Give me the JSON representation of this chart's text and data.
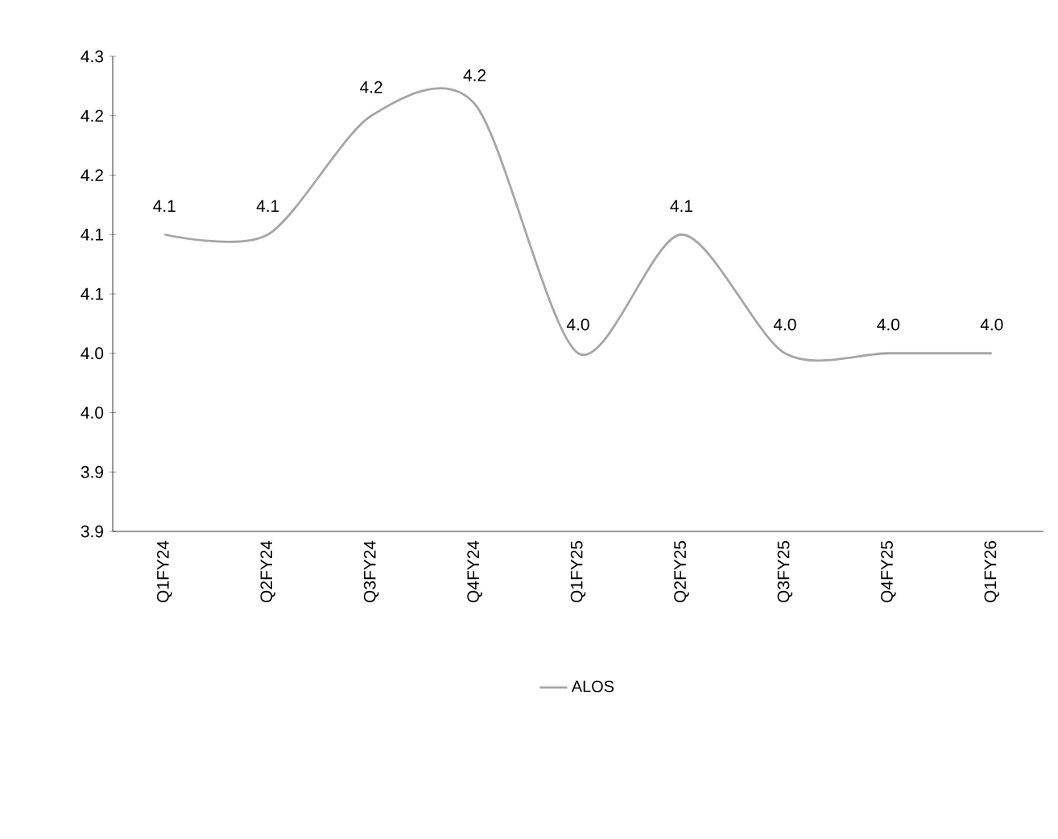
{
  "chart_data": {
    "type": "line",
    "categories": [
      "Q1FY24",
      "Q2FY24",
      "Q3FY24",
      "Q4FY24",
      "Q1FY25",
      "Q2FY25",
      "Q3FY25",
      "Q4FY25",
      "Q1FY26"
    ],
    "series": [
      {
        "name": "ALOS",
        "color": "#a6a6a6",
        "values": [
          4.1,
          4.1,
          4.2,
          4.21,
          4.0,
          4.1,
          4.0,
          4.0,
          4.0
        ],
        "value_labels": [
          "4.1",
          "4.1",
          "4.2",
          "4.2",
          "4.0",
          "4.1",
          "4.0",
          "4.0",
          "4.0"
        ]
      }
    ],
    "ylim": [
      3.85,
      4.25
    ],
    "yticks": [
      {
        "value": 3.85,
        "label": "3.9"
      },
      {
        "value": 3.9,
        "label": "3.9"
      },
      {
        "value": 3.95,
        "label": "4.0"
      },
      {
        "value": 4.0,
        "label": "4.0"
      },
      {
        "value": 4.05,
        "label": "4.1"
      },
      {
        "value": 4.1,
        "label": "4.1"
      },
      {
        "value": 4.15,
        "label": "4.2"
      },
      {
        "value": 4.2,
        "label": "4.2"
      },
      {
        "value": 4.25,
        "label": "4.3"
      }
    ],
    "grid": false,
    "legend": "bottom",
    "marker": "none",
    "line_style": "solid"
  }
}
